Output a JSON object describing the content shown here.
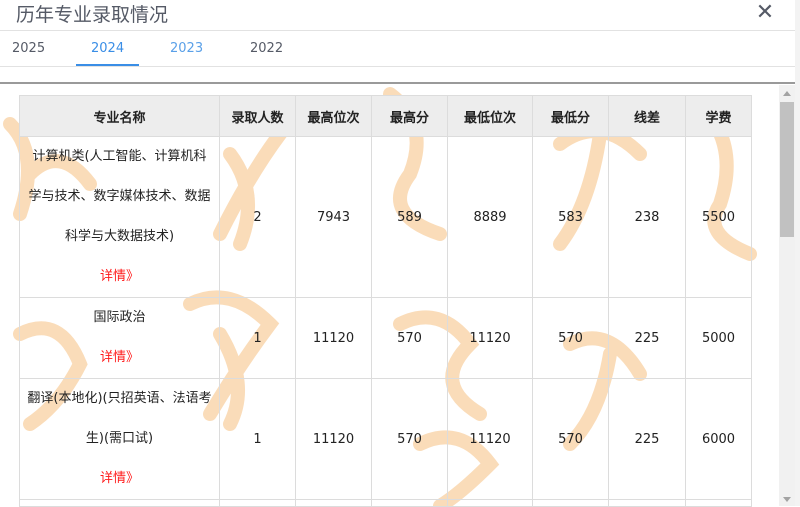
{
  "dialog": {
    "title": "历年专业录取情况",
    "close_icon": "close-icon"
  },
  "tabs": [
    {
      "label": "2025",
      "active": false
    },
    {
      "label": "2024",
      "active": true
    },
    {
      "label": "2023",
      "active": false
    },
    {
      "label": "2022",
      "active": false
    }
  ],
  "colors": {
    "accent": "#3a8ee6",
    "detail_link": "#ff1a1a",
    "watermark": "#f7c48a"
  },
  "table": {
    "headers": [
      "专业名称",
      "录取人数",
      "最高位次",
      "最高分",
      "最低位次",
      "最低分",
      "线差",
      "学费"
    ],
    "rows": [
      {
        "name_lines": [
          "计算机类(人工智能、计算机科",
          "学与技术、数字媒体技术、数据",
          "科学与大数据技术)"
        ],
        "detail": "详情》",
        "cells": [
          "2",
          "7943",
          "589",
          "8889",
          "583",
          "238",
          "5500"
        ]
      },
      {
        "name_lines": [
          "国际政治"
        ],
        "detail": "详情》",
        "cells": [
          "1",
          "11120",
          "570",
          "11120",
          "570",
          "225",
          "5000"
        ]
      },
      {
        "name_lines": [
          "翻译(本地化)(只招英语、法语考",
          "生)(需口试)"
        ],
        "detail": "详情》",
        "cells": [
          "1",
          "11120",
          "570",
          "11120",
          "570",
          "225",
          "6000"
        ]
      }
    ]
  }
}
